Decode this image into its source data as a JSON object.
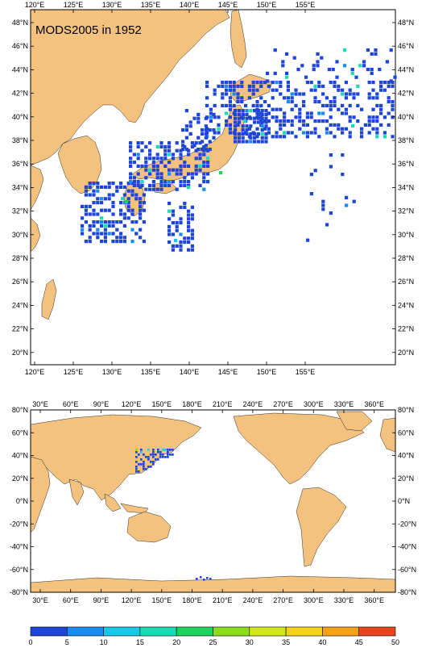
{
  "title": "MODS2005 in 1952",
  "colors": {
    "land": "#f4c27f",
    "ocean": "#ffffff",
    "frame": "#000000",
    "scale": [
      "#1e45d8",
      "#1a8cf0",
      "#19c8e6",
      "#19dcb4",
      "#1fd25a",
      "#8cdc1e",
      "#d2e61e",
      "#f5d21e",
      "#f5a019",
      "#e6461e"
    ]
  },
  "top_map": {
    "lon_labels": [
      "120°E",
      "125°E",
      "130°E",
      "135°E",
      "140°E",
      "145°E",
      "150°E",
      "155°E"
    ],
    "lat_labels": [
      "48°N",
      "46°N",
      "44°N",
      "42°N",
      "40°N",
      "38°N",
      "36°N",
      "34°N",
      "32°N",
      "30°N",
      "28°N",
      "26°N",
      "24°N",
      "22°N",
      "20°N"
    ]
  },
  "bottom_map": {
    "lon_labels": [
      "30°E",
      "60°E",
      "90°E",
      "120°E",
      "150°E",
      "180°E",
      "210°E",
      "240°E",
      "270°E",
      "300°E",
      "330°E",
      "360°E"
    ],
    "lat_labels": [
      "80°N",
      "60°N",
      "40°N",
      "20°N",
      "0°N",
      "-20°N",
      "-40°N",
      "-60°N",
      "-80°N"
    ]
  },
  "colorbar": {
    "labels": [
      "0",
      "5",
      "10",
      "15",
      "20",
      "25",
      "30",
      "35",
      "40",
      "45",
      "50"
    ]
  }
}
